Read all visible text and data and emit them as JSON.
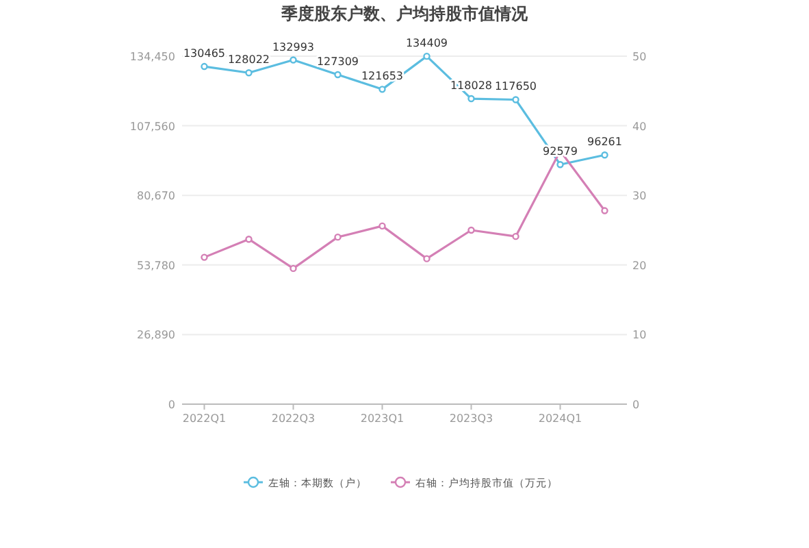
{
  "chart_data": {
    "type": "line",
    "title": "季度股东户数、户均持股市值情况",
    "categories": [
      "2022Q1",
      null,
      "2022Q3",
      null,
      "2023Q1",
      null,
      "2023Q3",
      null,
      "2024Q1",
      null
    ],
    "series": [
      {
        "name": "左轴：本期数（户）",
        "color": "#5bbde0",
        "values": [
          130465,
          128022,
          132993,
          127309,
          121653,
          134409,
          118028,
          117650,
          92579,
          96261
        ],
        "value_labels": [
          "130465",
          "128022",
          "132993",
          "127309",
          "121653",
          "134409",
          "118028",
          "117650",
          "92579",
          "96261"
        ]
      },
      {
        "name": "右轴：户均持股市值（万元）",
        "color": "#d47fb5",
        "axis": "y2",
        "values": [
          21.1,
          23.7,
          19.5,
          24.0,
          25.6,
          20.9,
          25.0,
          24.1,
          36.4,
          27.8
        ]
      }
    ],
    "ylim": [
      0,
      134450
    ],
    "yticks": [
      0,
      {
        "value": 26890,
        "label": "26,890"
      },
      {
        "value": 53780,
        "label": "53,780"
      },
      {
        "value": 80670,
        "label": "80,670"
      },
      {
        "value": 107560,
        "label": "107,560"
      },
      {
        "value": 134450,
        "label": "134,450"
      }
    ],
    "y2lim": [
      0,
      50
    ],
    "y2ticks": [
      0,
      10,
      20,
      30,
      40,
      50
    ],
    "grid": "y",
    "legend": "bottom",
    "marker": "circle"
  }
}
